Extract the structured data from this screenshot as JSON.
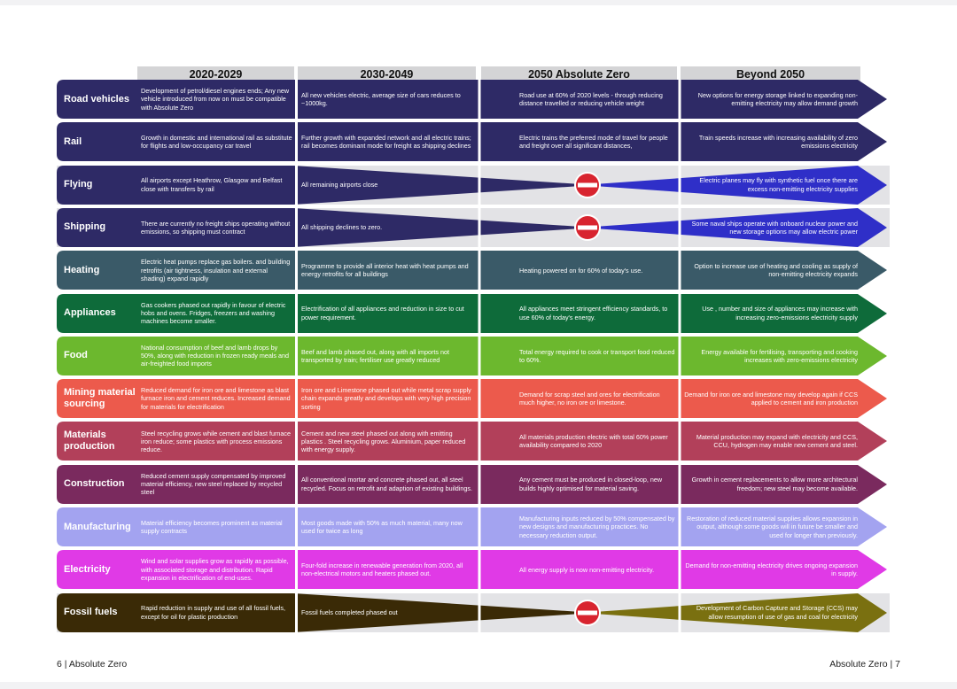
{
  "headers": [
    "2020-2029",
    "2030-2049",
    "2050 Absolute Zero",
    "Beyond 2050"
  ],
  "rows": [
    {
      "label": "Road vehicles",
      "color": "#2e2a66",
      "style": "full",
      "c1": "Development of petrol/diesel engines ends; Any new vehicle introduced from now on must be compatible with Absolute Zero",
      "c2": "All new vehicles electric, average size of cars reduces to ~1000kg.",
      "c3": "Road use at 60% of 2020 levels - through reducing distance travelled or reducing vehicle weight",
      "c4": "New options for energy storage linked to expanding non-emitting electricity may allow demand growth"
    },
    {
      "label": "Rail",
      "color": "#2e2a66",
      "style": "full",
      "c1": "Growth in domestic and international rail as substitute for flights and low-occupancy car travel",
      "c2": "Further growth with expanded network and all electric trains; rail becomes dominant mode for freight as shipping declines",
      "c3": "Electric trains the preferred mode of travel for people and freight over all significant distances,",
      "c4": "Train speeds increase with increasing availability of zero emissions electricity"
    },
    {
      "label": "Flying",
      "color": "#2e2a66",
      "color2": "#2f2fc8",
      "style": "stop",
      "c1": "All airports except Heathrow, Glasgow and Belfast close with transfers by rail",
      "c2": "All remaining airports close",
      "c3": "",
      "c4": "Electric planes may fly with synthetic fuel once there are excess non-emitting electricity supplies"
    },
    {
      "label": "Shipping",
      "color": "#2e2a66",
      "color2": "#2f2fc8",
      "style": "stop",
      "c1": "There are currently no freight ships operating without emissions, so shipping must contract",
      "c2": "All shipping declines to zero.",
      "c3": "",
      "c4": "Some naval ships operate with onboard nuclear power and new storage options may allow electric power"
    },
    {
      "label": "Heating",
      "color": "#3a5a68",
      "style": "full",
      "c1": "Electric heat pumps replace gas boilers. and building retrofits (air tightness, insulation and external shading) expand rapidly",
      "c2": "Programme to provide all interior heat with heat pumps and energy retrofits for all buildings",
      "c3": "Heating powered on for 60% of today's use.",
      "c4": "Option to increase use of heating and cooling as supply of non-emitting electricity expands"
    },
    {
      "label": "Appliances",
      "color": "#0e6b3a",
      "style": "full",
      "c1": "Gas cookers phased out rapidly in favour of electric hobs and ovens. Fridges, freezers and washing machines become smaller.",
      "c2": "Electrification of all appliances and reduction in size to cut power requirement.",
      "c3": "All appliances meet stringent efficiency standards, to use 60% of today's energy.",
      "c4": "Use , number and size of appliances may increase with increasing zero-emissions electricity supply"
    },
    {
      "label": "Food",
      "color": "#6cb82e",
      "style": "full",
      "c1": "National consumption of beef and lamb drops by 50%, along with reduction in frozen ready meals and air-freighted food imports",
      "c2": "Beef and lamb phased out, along with all imports not transported by train; fertiliser use greatly reduced",
      "c3": "Total energy required to cook or transport food reduced to 60%.",
      "c4": "Energy available for fertilising, transporting and cooking increases with zero-emissions electricity"
    },
    {
      "label": "Mining material sourcing",
      "color": "#ec5a4c",
      "style": "full",
      "c1": "Reduced demand for iron ore and limestone as blast furnace iron and cement reduces. Increased demand for materials for electrification",
      "c2": "Iron ore and Limestone phased out while metal scrap supply chain expands greatly and develops with very high precision sorting",
      "c3": "Demand for scrap steel and ores for electrification much higher, no iron ore or limestone.",
      "c4": "Demand for iron ore and limestone may develop again if CCS applied to cement and iron production"
    },
    {
      "label": "Materials production",
      "color": "#b2405a",
      "style": "full",
      "c1": "Steel recycling grows while cement and blast furnace iron reduce; some plastics with process emissions reduce.",
      "c2": "Cement and new steel phased out along with emitting plastics . Steel recycling grows. Aluminium, paper reduced with energy supply.",
      "c3": "All materials production electric with total 60% power availability compared to 2020",
      "c4": "Material production may expand with electricity and CCS, CCU, hydrogen may enable new cement and steel."
    },
    {
      "label": "Construction",
      "color": "#7a2a5e",
      "style": "full",
      "c1": "Reduced cement supply compensated by improved material efficiency, new steel replaced by recycled steel",
      "c2": "All conventional mortar and concrete phased out, all steel recycled. Focus on retrofit and adaption of existing buildings.",
      "c3": "Any cement must be produced in closed-loop, new builds highly optimised for material saving.",
      "c4": "Growth in cement replacements to allow more architectural freedom; new steel may become available."
    },
    {
      "label": "Manufacturing",
      "color": "#a3a3f0",
      "style": "full",
      "c1": "Material efficiency becomes prominent as material supply contracts",
      "c2": "Most goods made with 50% as much material, many now used for twice as long",
      "c3": "Manufacturing inputs reduced by 50% compensated by new designs and manufacturing practices. No necessary reduction output.",
      "c4": "Restoration of reduced material supplies allows expansion in output, although some goods will in future be smaller and used for longer than previously."
    },
    {
      "label": "Electricity",
      "color": "#e03ae6",
      "style": "full",
      "c1": "Wind and solar supplies grow as rapidly as possible, with associated storage and distribution. Rapid expansion in electrification of end-uses.",
      "c2": "Four-fold increase in renewable generation from 2020, all non-electrical motors and heaters phased out.",
      "c3": "All energy supply is now non-emitting electricity.",
      "c4": "Demand for non-emitting electricity drives ongoing expansion in supply."
    },
    {
      "label": "Fossil fuels",
      "color": "#3a2a06",
      "color2": "#7a7010",
      "style": "stop",
      "c1": "Rapid reduction in supply and use of all fossil fuels, except for oil for plastic production",
      "c2": "Fossil fuels completed phased out",
      "c3": "",
      "c4": "Development of Carbon Capture and Storage (CCS) may allow resumption of use of gas and coal for electricity"
    }
  ],
  "footer_left": "6 | Absolute Zero",
  "footer_right": "Absolute Zero | 7",
  "icon": "no-entry-icon"
}
